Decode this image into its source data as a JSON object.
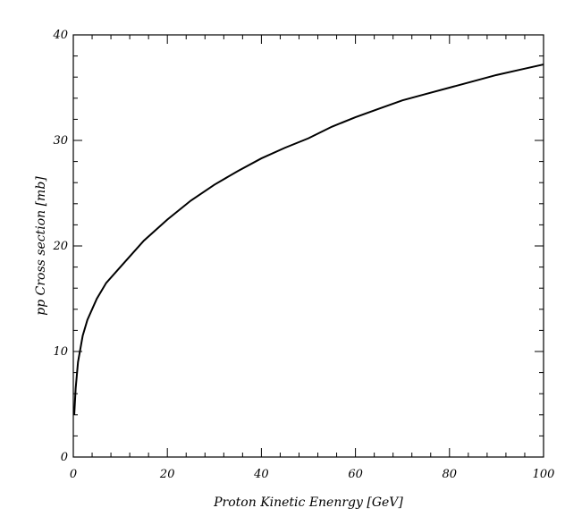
{
  "chart_data": {
    "type": "line",
    "title": "",
    "xlabel": "Proton Kinetic Enenrgy [GeV]",
    "ylabel": "pp Cross section [mb]",
    "xlim": [
      0,
      100
    ],
    "ylim": [
      0,
      40
    ],
    "x_ticks": [
      0,
      20,
      40,
      60,
      80,
      100
    ],
    "y_ticks": [
      0,
      10,
      20,
      30,
      40
    ],
    "x_tick_labels": [
      "0",
      "20",
      "40",
      "60",
      "80",
      "100"
    ],
    "y_tick_labels": [
      "0",
      "10",
      "20",
      "30",
      "40"
    ],
    "grid": false,
    "line_color": "#000000",
    "series": [
      {
        "x": [
          0.2,
          0.5,
          1,
          2,
          3,
          5,
          7,
          10,
          15,
          20,
          25,
          30,
          35,
          40,
          45,
          50,
          55,
          60,
          65,
          70,
          75,
          80,
          85,
          90,
          95,
          100
        ],
        "values": [
          4.0,
          6.5,
          9.0,
          11.5,
          13.0,
          15.0,
          16.5,
          18.0,
          20.5,
          22.5,
          24.3,
          25.8,
          27.1,
          28.3,
          29.3,
          30.2,
          31.3,
          32.2,
          33.0,
          33.8,
          34.4,
          35.0,
          35.6,
          36.2,
          36.7,
          37.2
        ]
      }
    ]
  }
}
